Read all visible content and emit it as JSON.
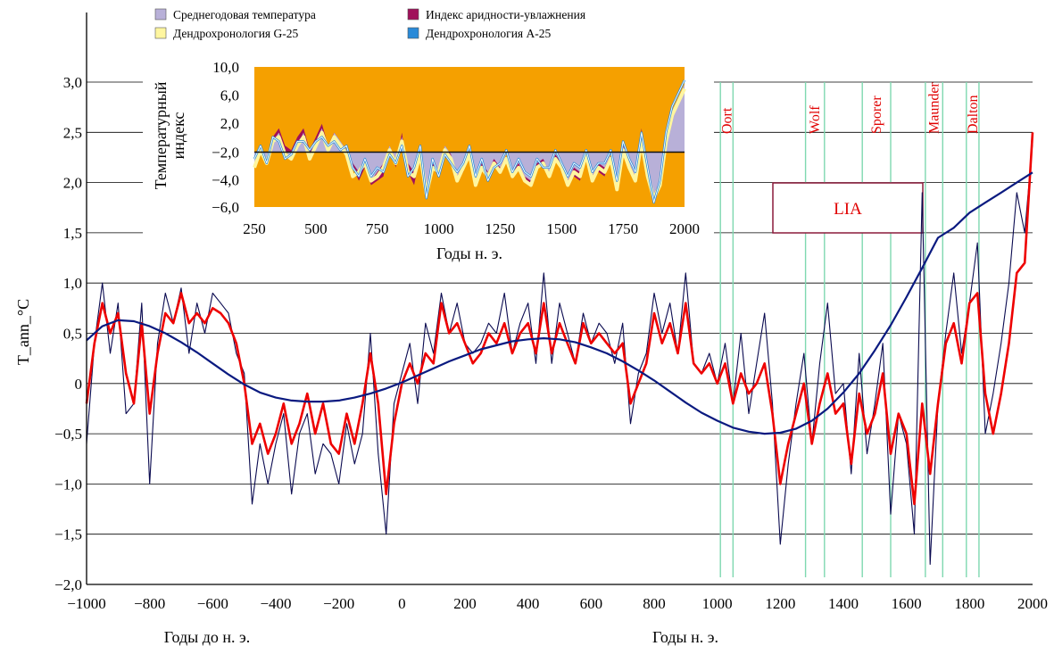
{
  "chart_data": [
    {
      "type": "line",
      "ylabel": "T_ann_°C",
      "xlabel_left": "Годы до н. э.",
      "xlabel_right": "Годы н. э.",
      "xlim": [
        -1000,
        2000
      ],
      "ylim": [
        -2.0,
        3.0
      ],
      "yticks": [
        "3,0",
        "2,5",
        "2,0",
        "1,5",
        "1,0",
        "0,5",
        "0",
        "−0,5",
        "−1,0",
        "−1,5",
        "−2,0"
      ],
      "xticks": [
        "−1000",
        "−800",
        "−600",
        "−400",
        "−200",
        "0",
        "200",
        "400",
        "600",
        "800",
        "1000",
        "1200",
        "1400",
        "1600",
        "1800",
        "2000"
      ],
      "grid": "horizontal",
      "series": [
        {
          "color": "#0a0a50",
          "x": [
            -1000,
            -975,
            -950,
            -925,
            -900,
            -875,
            -850,
            -825,
            -800,
            -775,
            -750,
            -725,
            -700,
            -675,
            -650,
            -625,
            -600,
            -575,
            -550,
            -525,
            -500,
            -475,
            -450,
            -425,
            -400,
            -375,
            -350,
            -325,
            -300,
            -275,
            -250,
            -225,
            -200,
            -175,
            -150,
            -125,
            -100,
            -75,
            -50,
            -25,
            0,
            25,
            50,
            75,
            100,
            125,
            150,
            175,
            200,
            225,
            250,
            275,
            300,
            325,
            350,
            375,
            400,
            425,
            450,
            475,
            500,
            525,
            550,
            575,
            600,
            625,
            650,
            675,
            700,
            725,
            750,
            775,
            800,
            825,
            850,
            875,
            900,
            925,
            950,
            975,
            1000,
            1025,
            1050,
            1075,
            1100,
            1125,
            1150,
            1175,
            1200,
            1225,
            1250,
            1275,
            1300,
            1325,
            1350,
            1375,
            1400,
            1425,
            1450,
            1475,
            1500,
            1525,
            1550,
            1575,
            1600,
            1625,
            1650,
            1675,
            1700,
            1725,
            1750,
            1775,
            1800,
            1825,
            1850,
            1875,
            1900,
            1925,
            1950,
            1975,
            2000
          ],
          "values": [
            -0.6,
            0.4,
            1.0,
            0.3,
            0.8,
            -0.3,
            -0.2,
            0.8,
            -1.0,
            0.4,
            0.9,
            0.6,
            0.95,
            0.3,
            0.8,
            0.5,
            0.9,
            0.8,
            0.7,
            0.3,
            0.1,
            -1.2,
            -0.6,
            -1.0,
            -0.6,
            -0.3,
            -1.1,
            -0.5,
            -0.3,
            -0.9,
            -0.6,
            -0.7,
            -1.0,
            -0.4,
            -0.8,
            -0.5,
            0.5,
            -0.7,
            -1.5,
            -0.2,
            0.1,
            0.4,
            -0.2,
            0.6,
            0.3,
            0.9,
            0.5,
            0.8,
            0.4,
            0.3,
            0.4,
            0.6,
            0.5,
            0.9,
            0.3,
            0.6,
            0.8,
            0.2,
            1.1,
            0.2,
            0.8,
            0.5,
            0.2,
            0.7,
            0.4,
            0.6,
            0.5,
            0.2,
            0.6,
            -0.4,
            0.1,
            0.3,
            0.9,
            0.5,
            0.8,
            0.3,
            1.1,
            0.2,
            0.1,
            0.3,
            0.0,
            0.4,
            -0.2,
            0.5,
            -0.3,
            0.2,
            0.7,
            -0.2,
            -1.6,
            -0.8,
            -0.2,
            0.3,
            -0.6,
            0.2,
            0.8,
            -0.1,
            0.0,
            -0.9,
            0.3,
            -0.7,
            -0.2,
            0.4,
            -1.3,
            -0.3,
            -0.6,
            -1.5,
            1.9,
            -1.8,
            -0.2,
            0.5,
            1.1,
            0.3,
            0.8,
            1.4,
            -0.5,
            -0.1,
            0.4,
            1.0,
            1.9,
            1.5,
            2.4
          ]
        },
        {
          "color": "#ee0000",
          "x": [
            -1000,
            -975,
            -950,
            -925,
            -900,
            -875,
            -850,
            -825,
            -800,
            -775,
            -750,
            -725,
            -700,
            -675,
            -650,
            -625,
            -600,
            -575,
            -550,
            -525,
            -500,
            -475,
            -450,
            -425,
            -400,
            -375,
            -350,
            -325,
            -300,
            -275,
            -250,
            -225,
            -200,
            -175,
            -150,
            -125,
            -100,
            -75,
            -50,
            -25,
            0,
            25,
            50,
            75,
            100,
            125,
            150,
            175,
            200,
            225,
            250,
            275,
            300,
            325,
            350,
            375,
            400,
            425,
            450,
            475,
            500,
            525,
            550,
            575,
            600,
            625,
            650,
            675,
            700,
            725,
            750,
            775,
            800,
            825,
            850,
            875,
            900,
            925,
            950,
            975,
            1000,
            1025,
            1050,
            1075,
            1100,
            1125,
            1150,
            1175,
            1200,
            1225,
            1250,
            1275,
            1300,
            1325,
            1350,
            1375,
            1400,
            1425,
            1450,
            1475,
            1500,
            1525,
            1550,
            1575,
            1600,
            1625,
            1650,
            1675,
            1700,
            1725,
            1750,
            1775,
            1800,
            1825,
            1850,
            1875,
            1900,
            1925,
            1950,
            1975,
            2000
          ],
          "values": [
            -0.2,
            0.4,
            0.8,
            0.5,
            0.7,
            0.1,
            -0.2,
            0.6,
            -0.3,
            0.3,
            0.7,
            0.6,
            0.9,
            0.6,
            0.7,
            0.6,
            0.75,
            0.7,
            0.6,
            0.4,
            0.0,
            -0.6,
            -0.4,
            -0.7,
            -0.5,
            -0.2,
            -0.6,
            -0.4,
            -0.1,
            -0.5,
            -0.2,
            -0.6,
            -0.7,
            -0.3,
            -0.6,
            -0.2,
            0.3,
            -0.2,
            -1.1,
            -0.4,
            0.0,
            0.2,
            0.0,
            0.3,
            0.2,
            0.8,
            0.5,
            0.6,
            0.4,
            0.2,
            0.3,
            0.5,
            0.4,
            0.6,
            0.3,
            0.5,
            0.6,
            0.3,
            0.8,
            0.3,
            0.6,
            0.4,
            0.2,
            0.6,
            0.4,
            0.5,
            0.4,
            0.3,
            0.4,
            -0.2,
            0.0,
            0.2,
            0.7,
            0.4,
            0.6,
            0.3,
            0.8,
            0.2,
            0.1,
            0.2,
            0.0,
            0.2,
            -0.2,
            0.1,
            -0.1,
            0.0,
            0.2,
            -0.3,
            -1.0,
            -0.6,
            -0.3,
            0.0,
            -0.6,
            -0.2,
            0.1,
            -0.3,
            -0.2,
            -0.8,
            -0.1,
            -0.5,
            -0.3,
            0.1,
            -0.7,
            -0.3,
            -0.5,
            -1.2,
            -0.2,
            -0.9,
            -0.2,
            0.4,
            0.6,
            0.2,
            0.8,
            0.9,
            -0.1,
            -0.5,
            -0.1,
            0.4,
            1.1,
            1.2,
            2.5
          ]
        },
        {
          "color": "#0a1a80",
          "x": [
            -1000,
            -950,
            -900,
            -850,
            -800,
            -750,
            -700,
            -650,
            -600,
            -550,
            -500,
            -450,
            -400,
            -350,
            -300,
            -250,
            -200,
            -150,
            -100,
            -50,
            0,
            50,
            100,
            150,
            200,
            250,
            300,
            350,
            400,
            450,
            500,
            550,
            600,
            650,
            700,
            750,
            800,
            850,
            900,
            950,
            1000,
            1050,
            1100,
            1150,
            1200,
            1250,
            1300,
            1350,
            1400,
            1450,
            1500,
            1550,
            1600,
            1650,
            1700,
            1750,
            1800,
            1850,
            1900,
            1950,
            2000
          ],
          "values": [
            0.43,
            0.57,
            0.63,
            0.62,
            0.57,
            0.5,
            0.41,
            0.31,
            0.2,
            0.09,
            -0.01,
            -0.09,
            -0.14,
            -0.17,
            -0.18,
            -0.18,
            -0.17,
            -0.14,
            -0.1,
            -0.05,
            0.01,
            0.08,
            0.15,
            0.22,
            0.28,
            0.34,
            0.38,
            0.42,
            0.44,
            0.45,
            0.44,
            0.41,
            0.36,
            0.3,
            0.22,
            0.13,
            0.03,
            -0.08,
            -0.19,
            -0.29,
            -0.37,
            -0.44,
            -0.48,
            -0.5,
            -0.49,
            -0.45,
            -0.37,
            -0.25,
            -0.09,
            0.1,
            0.33,
            0.58,
            0.86,
            1.15,
            1.45,
            1.55,
            1.7,
            1.8,
            1.9,
            2.0,
            2.1
          ]
        }
      ],
      "annotations": {
        "box_label": "LIA",
        "box_range": [
          1200,
          1670
        ],
        "box_y": [
          1.5,
          2.0
        ],
        "minima": [
          {
            "label": "Oort",
            "x": [
              1010,
              1050
            ]
          },
          {
            "label": "Wolf",
            "x": [
              1280,
              1340
            ]
          },
          {
            "label": "Sporer",
            "x": [
              1460,
              1550
            ]
          },
          {
            "label": "Maunder",
            "x": [
              1660,
              1715
            ]
          },
          {
            "label": "Dalton",
            "x": [
              1790,
              1830
            ]
          }
        ]
      }
    },
    {
      "type": "area",
      "xlabel": "Годы н. э.",
      "ylabel": "Температурный индекс",
      "xlim": [
        250,
        2000
      ],
      "ylim": [
        -6.0,
        10.0
      ],
      "xticks": [
        "250",
        "500",
        "750",
        "1000",
        "1250",
        "1500",
        "1750",
        "2000"
      ],
      "yticks": [
        "10,0",
        "6,0",
        "2,0",
        "−2,0",
        "−4,0",
        "−6,0"
      ],
      "background": "#f5a000",
      "legend": [
        {
          "label": "Среднегодовая температура",
          "color": "#b8b0d8"
        },
        {
          "label": "Индекс аридности-увлажнения",
          "color": "#a0105a"
        },
        {
          "label": "Дендрохронология G-25",
          "color": "#fff6a0"
        },
        {
          "label": "Дендрохронология A-25",
          "color": "#2a8ad8"
        }
      ],
      "x": [
        250,
        275,
        300,
        325,
        350,
        375,
        400,
        425,
        450,
        475,
        500,
        525,
        550,
        575,
        600,
        625,
        650,
        675,
        700,
        725,
        750,
        775,
        800,
        825,
        850,
        875,
        900,
        925,
        950,
        975,
        1000,
        1025,
        1050,
        1075,
        1100,
        1125,
        1150,
        1175,
        1200,
        1225,
        1250,
        1275,
        1300,
        1325,
        1350,
        1375,
        1400,
        1425,
        1450,
        1475,
        1500,
        1525,
        1550,
        1575,
        1600,
        1625,
        1650,
        1675,
        1700,
        1725,
        1750,
        1775,
        1800,
        1825,
        1850,
        1875,
        1900,
        1925,
        1950,
        1975,
        2000
      ],
      "series": [
        {
          "name": "Среднегодовая температура",
          "values": [
            -1.0,
            0.5,
            -1.0,
            1.5,
            2.5,
            0.5,
            -0.5,
            1.0,
            2.5,
            0.0,
            1.5,
            3.0,
            0.5,
            2.5,
            1.5,
            0.5,
            -1.0,
            -2.0,
            -0.5,
            -3.0,
            -2.0,
            -1.0,
            1.0,
            -0.5,
            2.0,
            -1.0,
            -2.0,
            0.5,
            -4.0,
            -1.0,
            -2.0,
            1.0,
            0.0,
            -2.5,
            -1.0,
            0.5,
            -3.0,
            -1.0,
            -2.0,
            -0.5,
            -1.5,
            0.0,
            -2.0,
            -1.0,
            -2.5,
            -3.0,
            -1.0,
            -0.5,
            -2.0,
            0.0,
            -1.0,
            -3.0,
            -1.5,
            -2.0,
            0.5,
            -2.5,
            -1.0,
            -1.5,
            0.0,
            -3.5,
            1.0,
            -1.0,
            -2.5,
            2.0,
            -2.0,
            -4.5,
            -3.0,
            2.0,
            5.0,
            6.5,
            8.0
          ]
        },
        {
          "name": "Индекс аридности-увлажнения",
          "values": [
            0.0,
            1.0,
            -0.5,
            2.0,
            3.0,
            1.0,
            0.5,
            2.0,
            3.0,
            0.5,
            2.0,
            3.5,
            1.0,
            2.5,
            1.5,
            -0.5,
            -1.5,
            -3.0,
            -1.5,
            -3.5,
            -3.0,
            -2.5,
            1.0,
            -1.5,
            2.5,
            -2.0,
            -3.5,
            0.0,
            -3.0,
            -1.5,
            -2.5,
            1.0,
            -0.5,
            -3.0,
            -2.0,
            0.5,
            -3.5,
            -1.5,
            -2.5,
            -1.0,
            -2.0,
            0.5,
            -2.5,
            -1.5,
            -3.0,
            -3.5,
            -1.5,
            -1.0,
            -2.5,
            -0.5,
            -2.0,
            -3.5,
            -2.5,
            -3.0,
            0.5,
            -3.0,
            -2.0,
            -2.5,
            0.5,
            -4.0,
            1.5,
            -1.5,
            -3.0,
            3.0,
            -2.5,
            -4.5,
            -3.5,
            1.5,
            4.0,
            5.5,
            8.0
          ]
        },
        {
          "name": "Дендрохронология G-25",
          "values": [
            -1.5,
            0.5,
            -1.0,
            1.5,
            2.0,
            0.0,
            -0.5,
            1.0,
            2.0,
            -0.5,
            1.0,
            2.5,
            0.5,
            2.0,
            1.0,
            0.0,
            -2.5,
            -2.0,
            -1.0,
            -3.0,
            -2.5,
            -1.5,
            0.5,
            -1.0,
            1.5,
            -2.0,
            -2.5,
            0.0,
            -4.5,
            -1.5,
            -2.0,
            0.5,
            -0.5,
            -3.0,
            -1.5,
            0.0,
            -3.5,
            -1.5,
            -2.5,
            -1.0,
            -2.0,
            -0.5,
            -2.5,
            -1.5,
            -3.0,
            -3.5,
            -1.5,
            -1.0,
            -2.5,
            -0.5,
            -1.5,
            -3.5,
            -2.0,
            -2.5,
            0.0,
            -3.0,
            -1.5,
            -2.0,
            -0.5,
            -4.0,
            0.5,
            -1.5,
            -3.0,
            1.5,
            -2.5,
            -5.0,
            -3.5,
            1.5,
            4.5,
            6.0,
            7.5
          ]
        },
        {
          "name": "Дендрохронология A-25",
          "values": [
            -0.5,
            1.0,
            -1.0,
            2.0,
            1.5,
            -0.5,
            0.0,
            1.5,
            1.5,
            0.5,
            1.5,
            2.0,
            1.0,
            1.5,
            0.5,
            1.0,
            -1.5,
            -2.5,
            -0.5,
            -2.5,
            -1.5,
            -2.0,
            0.0,
            -1.0,
            1.0,
            -2.5,
            -1.5,
            1.0,
            -5.0,
            -0.5,
            -2.5,
            0.0,
            -1.0,
            -2.0,
            -1.0,
            1.0,
            -2.5,
            -0.5,
            -3.0,
            -1.5,
            -1.0,
            0.5,
            -2.0,
            -0.5,
            -2.0,
            -2.5,
            -0.5,
            -1.5,
            -1.5,
            0.5,
            -1.0,
            -2.5,
            -1.0,
            -1.5,
            0.5,
            -2.0,
            -1.0,
            -1.0,
            0.5,
            -3.0,
            1.5,
            -0.5,
            -2.0,
            2.5,
            -1.5,
            -5.5,
            -3.0,
            2.5,
            5.5,
            7.0,
            8.5
          ]
        }
      ]
    }
  ]
}
